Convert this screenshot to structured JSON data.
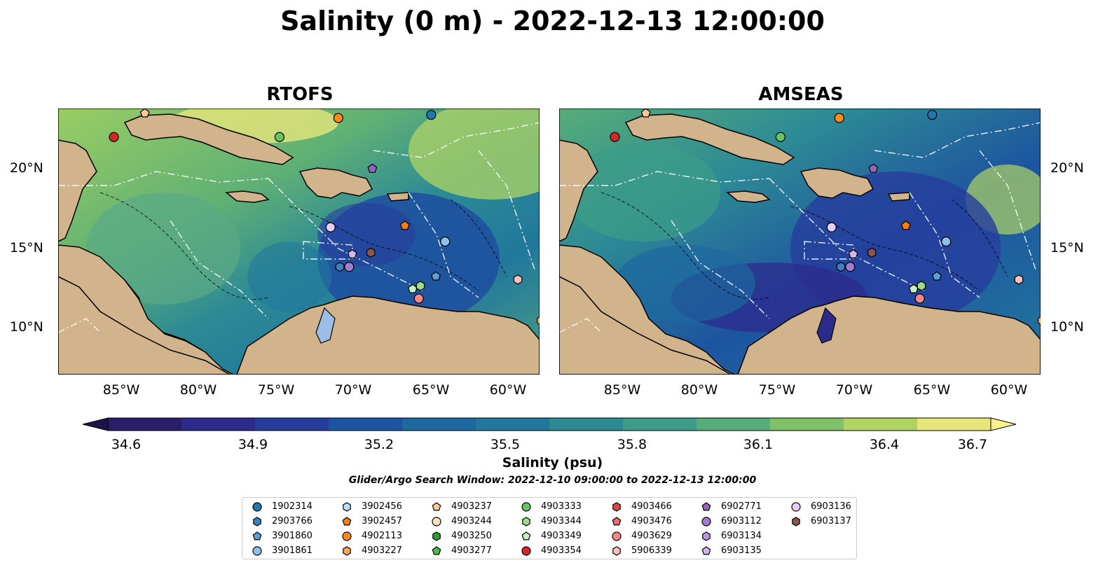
{
  "title": "Salinity (0 m) - 2022-12-13 12:00:00",
  "panels": [
    {
      "title": "RTOFS"
    },
    {
      "title": "AMSEAS"
    }
  ],
  "lat_labels": [
    "20°N",
    "15°N",
    "10°N"
  ],
  "lon_labels": [
    "85°W",
    "80°W",
    "75°W",
    "70°W",
    "65°W",
    "60°W"
  ],
  "colorbar": {
    "label": "Salinity (psu)",
    "ticks": [
      "34.6",
      "34.9",
      "35.2",
      "35.5",
      "35.8",
      "36.1",
      "36.4",
      "36.7"
    ],
    "min": 34.6,
    "max": 36.7,
    "colors": [
      "#2a1d6a",
      "#2c2b8c",
      "#263d9c",
      "#1d54a0",
      "#1c689f",
      "#21789c",
      "#2d8a95",
      "#3c9c88",
      "#56ad78",
      "#80c066",
      "#b0d464",
      "#e6e67c"
    ]
  },
  "window_text": "Glider/Argo Search Window: 2022-12-10 09:00:00 to 2022-12-13 12:00:00",
  "colors": {
    "land": "#d2b48c",
    "pacific_amseas": "#95b4e0",
    "pacific_rtofs": "#2a1d6a",
    "lake": "#9cbde6"
  },
  "legend": [
    {
      "id": "1902314",
      "marker": "circle",
      "color": "#1f77b4"
    },
    {
      "id": "2903766",
      "marker": "hexagon",
      "color": "#3a82c2"
    },
    {
      "id": "3901860",
      "marker": "pentagon",
      "color": "#5aa0de"
    },
    {
      "id": "3901861",
      "marker": "circle",
      "color": "#8ec1ea"
    },
    {
      "id": "3902456",
      "marker": "hexagon",
      "color": "#b7dff8"
    },
    {
      "id": "3902457",
      "marker": "pentagon",
      "color": "#ff7f0e"
    },
    {
      "id": "4902113",
      "marker": "circle",
      "color": "#ff8c1a"
    },
    {
      "id": "4903227",
      "marker": "hexagon",
      "color": "#ffa655"
    },
    {
      "id": "4903237",
      "marker": "pentagon",
      "color": "#ffc895"
    },
    {
      "id": "4903244",
      "marker": "circle",
      "color": "#ffe0c0"
    },
    {
      "id": "4903250",
      "marker": "hexagon",
      "color": "#2ca02c"
    },
    {
      "id": "4903277",
      "marker": "pentagon",
      "color": "#4cbb4c"
    },
    {
      "id": "4903333",
      "marker": "circle",
      "color": "#66c466"
    },
    {
      "id": "4903344",
      "marker": "hexagon",
      "color": "#98df8a"
    },
    {
      "id": "4903349",
      "marker": "pentagon",
      "color": "#c8f0c0"
    },
    {
      "id": "4903354",
      "marker": "circle",
      "color": "#d62728"
    },
    {
      "id": "4903466",
      "marker": "hexagon",
      "color": "#e04848"
    },
    {
      "id": "4903476",
      "marker": "pentagon",
      "color": "#ea6a6a"
    },
    {
      "id": "4903629",
      "marker": "circle",
      "color": "#f08a8a"
    },
    {
      "id": "5906339",
      "marker": "hexagon",
      "color": "#ffc0c0"
    },
    {
      "id": "6902771",
      "marker": "pentagon",
      "color": "#9467bd"
    },
    {
      "id": "6903112",
      "marker": "circle",
      "color": "#a27cd0"
    },
    {
      "id": "6903134",
      "marker": "hexagon",
      "color": "#b89ae0"
    },
    {
      "id": "6903135",
      "marker": "pentagon",
      "color": "#d2b8ee"
    },
    {
      "id": "6903136",
      "marker": "circle",
      "color": "#e6ccf8"
    },
    {
      "id": "6903137",
      "marker": "hexagon",
      "color": "#8c564b"
    }
  ],
  "floats": [
    {
      "id": "1902314",
      "lon": -65.1,
      "lat": 23.5
    },
    {
      "id": "4902113",
      "lon": -71.1,
      "lat": 23.3
    },
    {
      "id": "4903237",
      "lon": -83.6,
      "lat": 23.6
    },
    {
      "id": "4903354",
      "lon": -85.6,
      "lat": 22.1
    },
    {
      "id": "4903333",
      "lon": -74.9,
      "lat": 22.1
    },
    {
      "id": "6902771",
      "lon": -68.9,
      "lat": 20.1
    },
    {
      "id": "3902457",
      "lon": -66.8,
      "lat": 16.5
    },
    {
      "id": "6903136",
      "lon": -71.6,
      "lat": 16.4
    },
    {
      "id": "3901861",
      "lon": -64.2,
      "lat": 15.5
    },
    {
      "id": "6903135",
      "lon": -70.2,
      "lat": 14.7
    },
    {
      "id": "6903137",
      "lon": -69.0,
      "lat": 14.8
    },
    {
      "id": "2903766",
      "lon": -71.0,
      "lat": 13.9
    },
    {
      "id": "6903112",
      "lon": -70.4,
      "lat": 13.9
    },
    {
      "id": "3901860",
      "lon": -64.8,
      "lat": 13.3
    },
    {
      "id": "4903349",
      "lon": -66.3,
      "lat": 12.5
    },
    {
      "id": "4903344",
      "lon": -65.8,
      "lat": 12.7
    },
    {
      "id": "4903629",
      "lon": -65.9,
      "lat": 11.9
    },
    {
      "id": "5906339",
      "lon": -59.5,
      "lat": 13.1
    },
    {
      "id": "4903227",
      "lon": -58.0,
      "lat": 10.5
    }
  ]
}
